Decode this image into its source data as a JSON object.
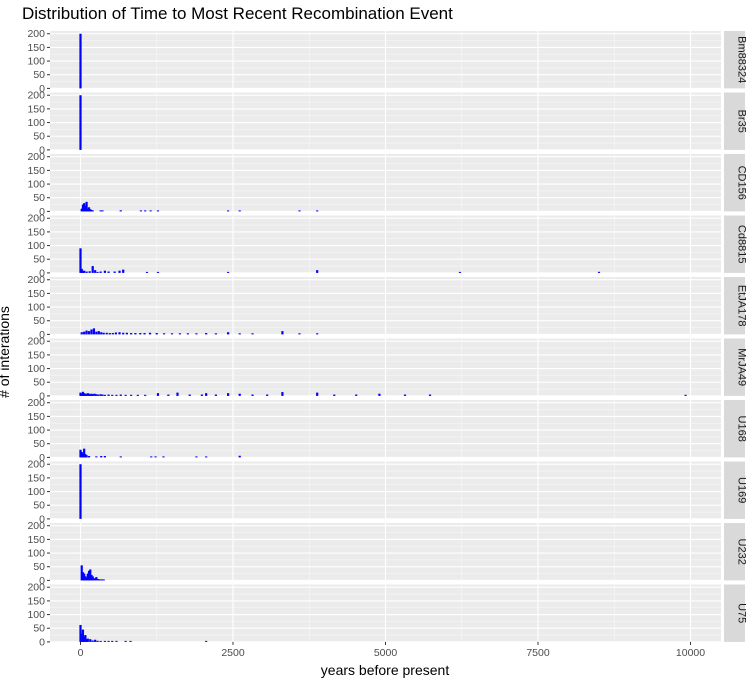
{
  "chart_data": {
    "type": "bar",
    "title": "Distribution of Time to Most Recent Recombination Event",
    "xlabel": "years before present",
    "ylabel": "# of interations",
    "x_ticks": [
      "0",
      "2500",
      "5000",
      "7500",
      "10000"
    ],
    "y_ticks": [
      "0",
      "50",
      "100",
      "150",
      "200"
    ],
    "xlim": [
      -500,
      10500
    ],
    "ylim": [
      0,
      210
    ],
    "bar_color": "#0000FF",
    "panel_bg": "#EBEBEB",
    "strip_bg": "#D9D9D9",
    "facets": [
      {
        "name": "Bm88324",
        "bars": [
          [
            0,
            200
          ]
        ]
      },
      {
        "name": "Br35",
        "bars": [
          [
            0,
            200
          ]
        ]
      },
      {
        "name": "CD156",
        "bars": [
          [
            20,
            10
          ],
          [
            40,
            25
          ],
          [
            60,
            30
          ],
          [
            80,
            20
          ],
          [
            100,
            35
          ],
          [
            120,
            10
          ],
          [
            140,
            15
          ],
          [
            160,
            8
          ],
          [
            180,
            5
          ],
          [
            200,
            3
          ],
          [
            330,
            3
          ],
          [
            360,
            3
          ],
          [
            660,
            4
          ],
          [
            990,
            2
          ],
          [
            1060,
            2
          ],
          [
            1150,
            2
          ],
          [
            1270,
            2
          ],
          [
            2420,
            2
          ],
          [
            2610,
            2
          ],
          [
            3590,
            3
          ],
          [
            3880,
            3
          ]
        ]
      },
      {
        "name": "Cd8815",
        "bars": [
          [
            0,
            90
          ],
          [
            20,
            15
          ],
          [
            40,
            8
          ],
          [
            60,
            8
          ],
          [
            100,
            5
          ],
          [
            150,
            6
          ],
          [
            200,
            25
          ],
          [
            240,
            10
          ],
          [
            280,
            3
          ],
          [
            330,
            5
          ],
          [
            400,
            8
          ],
          [
            460,
            5
          ],
          [
            560,
            5
          ],
          [
            640,
            8
          ],
          [
            700,
            12
          ],
          [
            1090,
            3
          ],
          [
            1270,
            2
          ],
          [
            2420,
            2
          ],
          [
            3880,
            10
          ],
          [
            6220,
            3
          ],
          [
            8500,
            4
          ]
        ]
      },
      {
        "name": "EtJA178",
        "bars": [
          [
            20,
            8
          ],
          [
            60,
            10
          ],
          [
            100,
            14
          ],
          [
            140,
            12
          ],
          [
            180,
            18
          ],
          [
            220,
            22
          ],
          [
            260,
            10
          ],
          [
            300,
            12
          ],
          [
            340,
            8
          ],
          [
            380,
            6
          ],
          [
            430,
            6
          ],
          [
            480,
            5
          ],
          [
            530,
            5
          ],
          [
            580,
            7
          ],
          [
            640,
            8
          ],
          [
            700,
            6
          ],
          [
            760,
            6
          ],
          [
            830,
            5
          ],
          [
            900,
            5
          ],
          [
            980,
            5
          ],
          [
            1050,
            5
          ],
          [
            1140,
            6
          ],
          [
            1250,
            5
          ],
          [
            1370,
            4
          ],
          [
            1500,
            4
          ],
          [
            1630,
            4
          ],
          [
            1760,
            4
          ],
          [
            1900,
            4
          ],
          [
            2060,
            5
          ],
          [
            2220,
            4
          ],
          [
            2420,
            8
          ],
          [
            2610,
            4
          ],
          [
            2820,
            4
          ],
          [
            3310,
            12
          ],
          [
            3590,
            4
          ],
          [
            3880,
            4
          ]
        ]
      },
      {
        "name": "MrJA49",
        "bars": [
          [
            0,
            12
          ],
          [
            20,
            8
          ],
          [
            40,
            15
          ],
          [
            60,
            10
          ],
          [
            80,
            8
          ],
          [
            100,
            6
          ],
          [
            120,
            10
          ],
          [
            140,
            8
          ],
          [
            160,
            5
          ],
          [
            180,
            8
          ],
          [
            200,
            6
          ],
          [
            230,
            8
          ],
          [
            260,
            6
          ],
          [
            290,
            5
          ],
          [
            330,
            6
          ],
          [
            360,
            5
          ],
          [
            400,
            4
          ],
          [
            460,
            5
          ],
          [
            520,
            4
          ],
          [
            590,
            4
          ],
          [
            660,
            5
          ],
          [
            740,
            4
          ],
          [
            830,
            4
          ],
          [
            940,
            4
          ],
          [
            1060,
            4
          ],
          [
            1270,
            10
          ],
          [
            1440,
            5
          ],
          [
            1590,
            12
          ],
          [
            1790,
            5
          ],
          [
            1990,
            5
          ],
          [
            2060,
            10
          ],
          [
            2220,
            5
          ],
          [
            2420,
            10
          ],
          [
            2610,
            8
          ],
          [
            2820,
            5
          ],
          [
            3060,
            5
          ],
          [
            3310,
            14
          ],
          [
            3880,
            12
          ],
          [
            4160,
            5
          ],
          [
            4520,
            5
          ],
          [
            4900,
            8
          ],
          [
            5320,
            5
          ],
          [
            5730,
            5
          ],
          [
            9920,
            4
          ]
        ]
      },
      {
        "name": "U168",
        "bars": [
          [
            0,
            28
          ],
          [
            20,
            20
          ],
          [
            40,
            15
          ],
          [
            60,
            32
          ],
          [
            80,
            12
          ],
          [
            100,
            8
          ],
          [
            140,
            5
          ],
          [
            260,
            3
          ],
          [
            340,
            5
          ],
          [
            400,
            5
          ],
          [
            660,
            3
          ],
          [
            1160,
            3
          ],
          [
            1230,
            3
          ],
          [
            1360,
            3
          ],
          [
            1900,
            3
          ],
          [
            2060,
            3
          ],
          [
            2610,
            6
          ]
        ]
      },
      {
        "name": "U169",
        "bars": [
          [
            0,
            200
          ]
        ]
      },
      {
        "name": "U232",
        "bars": [
          [
            20,
            55
          ],
          [
            40,
            30
          ],
          [
            60,
            25
          ],
          [
            80,
            15
          ],
          [
            100,
            10
          ],
          [
            120,
            25
          ],
          [
            140,
            35
          ],
          [
            160,
            40
          ],
          [
            180,
            20
          ],
          [
            200,
            15
          ],
          [
            230,
            8
          ],
          [
            260,
            12
          ],
          [
            290,
            5
          ],
          [
            320,
            3
          ],
          [
            350,
            3
          ],
          [
            380,
            3
          ]
        ]
      },
      {
        "name": "U75",
        "bars": [
          [
            0,
            62
          ],
          [
            20,
            30
          ],
          [
            40,
            45
          ],
          [
            60,
            20
          ],
          [
            80,
            25
          ],
          [
            100,
            10
          ],
          [
            120,
            12
          ],
          [
            160,
            10
          ],
          [
            200,
            5
          ],
          [
            240,
            8
          ],
          [
            280,
            4
          ],
          [
            330,
            3
          ],
          [
            400,
            3
          ],
          [
            460,
            3
          ],
          [
            520,
            3
          ],
          [
            590,
            3
          ],
          [
            740,
            3
          ],
          [
            820,
            3
          ],
          [
            2060,
            3
          ]
        ]
      }
    ]
  }
}
